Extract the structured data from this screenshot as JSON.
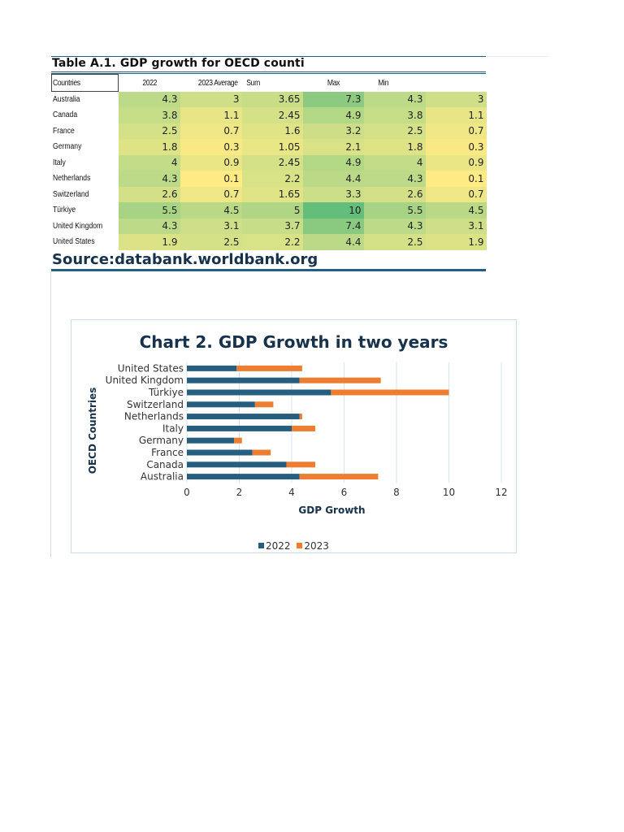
{
  "table": {
    "title": "Table A.1.  GDP growth for OECD counti",
    "headers": [
      "Countries",
      "2022",
      "2023 Average",
      "Sum",
      "Max",
      "Min"
    ],
    "rows": [
      {
        "country": "Australia",
        "values": [
          "4.3",
          "3",
          "3.65",
          "7.3",
          "4.3",
          "3"
        ]
      },
      {
        "country": "Canada",
        "values": [
          "3.8",
          "1.1",
          "2.45",
          "4.9",
          "3.8",
          "1.1"
        ]
      },
      {
        "country": "France",
        "values": [
          "2.5",
          "0.7",
          "1.6",
          "3.2",
          "2.5",
          "0.7"
        ]
      },
      {
        "country": "Germany",
        "values": [
          "1.8",
          "0.3",
          "1.05",
          "2.1",
          "1.8",
          "0.3"
        ]
      },
      {
        "country": "Italy",
        "values": [
          "4",
          "0.9",
          "2.45",
          "4.9",
          "4",
          "0.9"
        ]
      },
      {
        "country": "Netherlands",
        "values": [
          "4.3",
          "0.1",
          "2.2",
          "4.4",
          "4.3",
          "0.1"
        ]
      },
      {
        "country": "Switzerland",
        "values": [
          "2.6",
          "0.7",
          "1.65",
          "3.3",
          "2.6",
          "0.7"
        ]
      },
      {
        "country": "Türkiye",
        "values": [
          "5.5",
          "4.5",
          "5",
          "10",
          "5.5",
          "4.5"
        ]
      },
      {
        "country": "United Kingdom",
        "values": [
          "4.3",
          "3.1",
          "3.7",
          "7.4",
          "4.3",
          "3.1"
        ]
      },
      {
        "country": "United States",
        "values": [
          "1.9",
          "2.5",
          "2.2",
          "4.4",
          "2.5",
          "1.9"
        ]
      }
    ],
    "heatmap_colors": {
      "low": "#ffeb84",
      "mid": "#c6dd88",
      "high": "#63be7b"
    }
  },
  "source": "Source:databank.worldbank.org",
  "colors": {
    "series_2022": "#255e7e",
    "series_2023": "#ed7d31",
    "title": "#17324d",
    "gridline": "#d6e4f0"
  },
  "chart_data": {
    "type": "bar",
    "orientation": "horizontal",
    "stacked": true,
    "title": "Chart 2. GDP Growth in two years",
    "xlabel": "GDP Growth",
    "ylabel": "OECD Countries",
    "categories": [
      "Australia",
      "Canada",
      "France",
      "Germany",
      "Italy",
      "Netherlands",
      "Switzerland",
      "Türkiye",
      "United Kingdom",
      "United States"
    ],
    "series": [
      {
        "name": "2022",
        "values": [
          4.3,
          3.8,
          2.5,
          1.8,
          4,
          4.3,
          2.6,
          5.5,
          4.3,
          1.9
        ]
      },
      {
        "name": "2023",
        "values": [
          3,
          1.1,
          0.7,
          0.3,
          0.9,
          0.1,
          0.7,
          4.5,
          3.1,
          2.5
        ]
      }
    ],
    "xlim": [
      0,
      12
    ],
    "xticks": [
      "0",
      "2",
      "4",
      "6",
      "8",
      "10",
      "12"
    ],
    "grid": true,
    "legend": "bottom"
  }
}
